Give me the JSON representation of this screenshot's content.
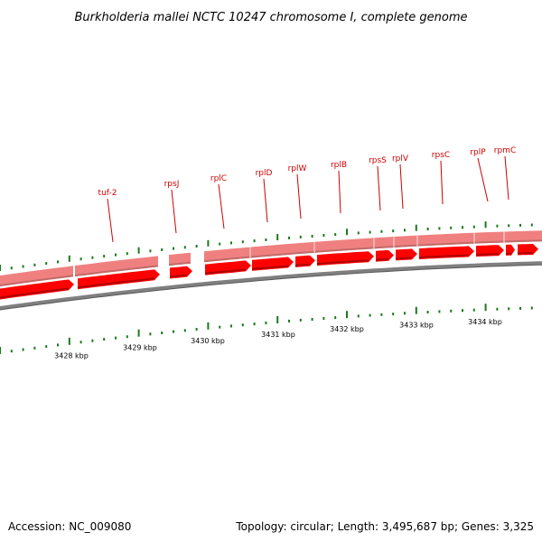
{
  "title": "Burkholderia mallei NCTC 10247 chromosome I, complete genome",
  "footer": {
    "accession": "Accession: NC_009080",
    "summary": "Topology: circular; Length: 3,495,687 bp; Genes: 3,325"
  },
  "colors": {
    "gene_fill": "#ff0000",
    "gene_band": "#f08080",
    "backbone": "#808080",
    "tick": "#1a7a1a",
    "label": "#cc0000"
  },
  "scale_labels": [
    "3428 kbp",
    "3429 kbp",
    "3430 kbp",
    "3431 kbp",
    "3432 kbp",
    "3433 kbp",
    "3434 kbp"
  ],
  "genes": [
    {
      "name": "tuf-2"
    },
    {
      "name": "rpsJ"
    },
    {
      "name": "rplC"
    },
    {
      "name": "rplD"
    },
    {
      "name": "rplW"
    },
    {
      "name": "rplB"
    },
    {
      "name": "rpsS"
    },
    {
      "name": "rplV"
    },
    {
      "name": "rpsC"
    },
    {
      "name": "rplP"
    },
    {
      "name": "rpmC"
    }
  ]
}
